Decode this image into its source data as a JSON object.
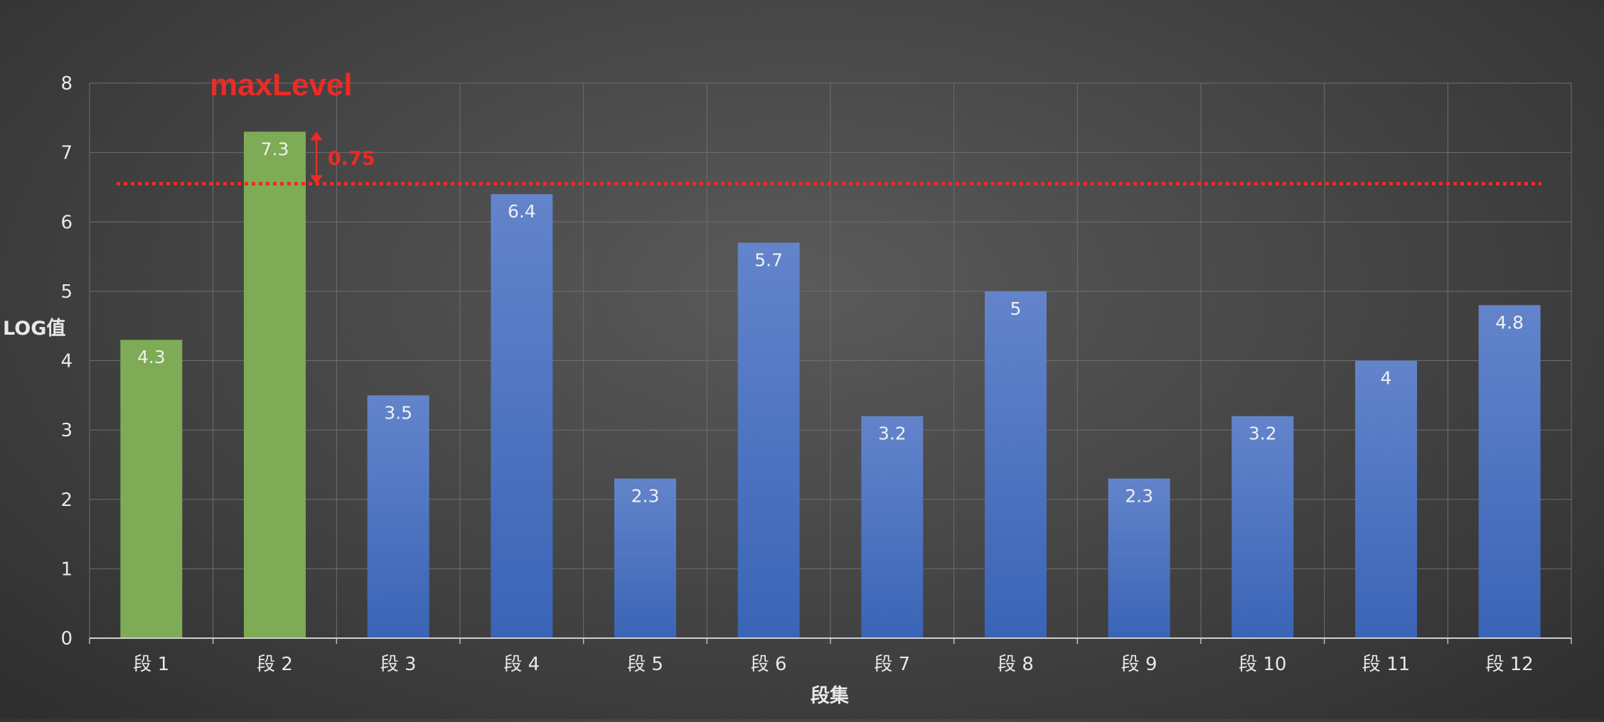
{
  "chart_data": {
    "type": "bar",
    "title": "",
    "xlabel": "段集",
    "ylabel": "LOG值",
    "categories": [
      "段 1",
      "段 2",
      "段 3",
      "段 4",
      "段 5",
      "段 6",
      "段 7",
      "段 8",
      "段 9",
      "段 10",
      "段 11",
      "段 12"
    ],
    "values": [
      4.3,
      7.3,
      3.5,
      6.4,
      2.3,
      5.7,
      3.2,
      5,
      2.3,
      3.2,
      4,
      4.8
    ],
    "ylim": [
      0,
      8
    ],
    "yticks": [
      0,
      1,
      2,
      3,
      4,
      5,
      6,
      7,
      8
    ],
    "grid": true,
    "highlight_categories": [
      "段 1",
      "段 2"
    ],
    "colors": {
      "highlight": "#7eab55",
      "default": "#4472c4",
      "annotation": "#ee2a24"
    },
    "reference_line": {
      "y": 6.55,
      "style": "dotted"
    },
    "annotations": {
      "title": "maxLevel",
      "difference_label": "0.75",
      "difference_from": 7.3,
      "difference_to": 6.55
    }
  }
}
